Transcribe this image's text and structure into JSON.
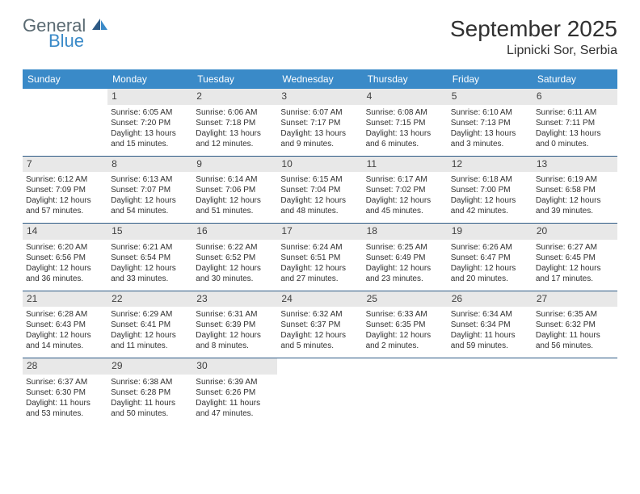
{
  "logo": {
    "part1": "General",
    "part2": "Blue"
  },
  "title": "September 2025",
  "location": "Lipnicki Sor, Serbia",
  "colors": {
    "header_bg": "#3a8ac8",
    "header_text": "#ffffff",
    "daynum_bg": "#e8e8e8",
    "row_border": "#2d5a85",
    "text": "#303030",
    "page_bg": "#ffffff"
  },
  "daysOfWeek": [
    "Sunday",
    "Monday",
    "Tuesday",
    "Wednesday",
    "Thursday",
    "Friday",
    "Saturday"
  ],
  "grid": {
    "columns": 7,
    "rows": 5
  },
  "fonts": {
    "title_pt": 28,
    "location_pt": 16,
    "dow_pt": 12,
    "daynum_pt": 12,
    "body_pt": 10
  },
  "weeks": [
    [
      {
        "n": "",
        "sunrise": "",
        "sunset": "",
        "daylight": ""
      },
      {
        "n": "1",
        "sunrise": "Sunrise: 6:05 AM",
        "sunset": "Sunset: 7:20 PM",
        "daylight": "Daylight: 13 hours and 15 minutes."
      },
      {
        "n": "2",
        "sunrise": "Sunrise: 6:06 AM",
        "sunset": "Sunset: 7:18 PM",
        "daylight": "Daylight: 13 hours and 12 minutes."
      },
      {
        "n": "3",
        "sunrise": "Sunrise: 6:07 AM",
        "sunset": "Sunset: 7:17 PM",
        "daylight": "Daylight: 13 hours and 9 minutes."
      },
      {
        "n": "4",
        "sunrise": "Sunrise: 6:08 AM",
        "sunset": "Sunset: 7:15 PM",
        "daylight": "Daylight: 13 hours and 6 minutes."
      },
      {
        "n": "5",
        "sunrise": "Sunrise: 6:10 AM",
        "sunset": "Sunset: 7:13 PM",
        "daylight": "Daylight: 13 hours and 3 minutes."
      },
      {
        "n": "6",
        "sunrise": "Sunrise: 6:11 AM",
        "sunset": "Sunset: 7:11 PM",
        "daylight": "Daylight: 13 hours and 0 minutes."
      }
    ],
    [
      {
        "n": "7",
        "sunrise": "Sunrise: 6:12 AM",
        "sunset": "Sunset: 7:09 PM",
        "daylight": "Daylight: 12 hours and 57 minutes."
      },
      {
        "n": "8",
        "sunrise": "Sunrise: 6:13 AM",
        "sunset": "Sunset: 7:07 PM",
        "daylight": "Daylight: 12 hours and 54 minutes."
      },
      {
        "n": "9",
        "sunrise": "Sunrise: 6:14 AM",
        "sunset": "Sunset: 7:06 PM",
        "daylight": "Daylight: 12 hours and 51 minutes."
      },
      {
        "n": "10",
        "sunrise": "Sunrise: 6:15 AM",
        "sunset": "Sunset: 7:04 PM",
        "daylight": "Daylight: 12 hours and 48 minutes."
      },
      {
        "n": "11",
        "sunrise": "Sunrise: 6:17 AM",
        "sunset": "Sunset: 7:02 PM",
        "daylight": "Daylight: 12 hours and 45 minutes."
      },
      {
        "n": "12",
        "sunrise": "Sunrise: 6:18 AM",
        "sunset": "Sunset: 7:00 PM",
        "daylight": "Daylight: 12 hours and 42 minutes."
      },
      {
        "n": "13",
        "sunrise": "Sunrise: 6:19 AM",
        "sunset": "Sunset: 6:58 PM",
        "daylight": "Daylight: 12 hours and 39 minutes."
      }
    ],
    [
      {
        "n": "14",
        "sunrise": "Sunrise: 6:20 AM",
        "sunset": "Sunset: 6:56 PM",
        "daylight": "Daylight: 12 hours and 36 minutes."
      },
      {
        "n": "15",
        "sunrise": "Sunrise: 6:21 AM",
        "sunset": "Sunset: 6:54 PM",
        "daylight": "Daylight: 12 hours and 33 minutes."
      },
      {
        "n": "16",
        "sunrise": "Sunrise: 6:22 AM",
        "sunset": "Sunset: 6:52 PM",
        "daylight": "Daylight: 12 hours and 30 minutes."
      },
      {
        "n": "17",
        "sunrise": "Sunrise: 6:24 AM",
        "sunset": "Sunset: 6:51 PM",
        "daylight": "Daylight: 12 hours and 27 minutes."
      },
      {
        "n": "18",
        "sunrise": "Sunrise: 6:25 AM",
        "sunset": "Sunset: 6:49 PM",
        "daylight": "Daylight: 12 hours and 23 minutes."
      },
      {
        "n": "19",
        "sunrise": "Sunrise: 6:26 AM",
        "sunset": "Sunset: 6:47 PM",
        "daylight": "Daylight: 12 hours and 20 minutes."
      },
      {
        "n": "20",
        "sunrise": "Sunrise: 6:27 AM",
        "sunset": "Sunset: 6:45 PM",
        "daylight": "Daylight: 12 hours and 17 minutes."
      }
    ],
    [
      {
        "n": "21",
        "sunrise": "Sunrise: 6:28 AM",
        "sunset": "Sunset: 6:43 PM",
        "daylight": "Daylight: 12 hours and 14 minutes."
      },
      {
        "n": "22",
        "sunrise": "Sunrise: 6:29 AM",
        "sunset": "Sunset: 6:41 PM",
        "daylight": "Daylight: 12 hours and 11 minutes."
      },
      {
        "n": "23",
        "sunrise": "Sunrise: 6:31 AM",
        "sunset": "Sunset: 6:39 PM",
        "daylight": "Daylight: 12 hours and 8 minutes."
      },
      {
        "n": "24",
        "sunrise": "Sunrise: 6:32 AM",
        "sunset": "Sunset: 6:37 PM",
        "daylight": "Daylight: 12 hours and 5 minutes."
      },
      {
        "n": "25",
        "sunrise": "Sunrise: 6:33 AM",
        "sunset": "Sunset: 6:35 PM",
        "daylight": "Daylight: 12 hours and 2 minutes."
      },
      {
        "n": "26",
        "sunrise": "Sunrise: 6:34 AM",
        "sunset": "Sunset: 6:34 PM",
        "daylight": "Daylight: 11 hours and 59 minutes."
      },
      {
        "n": "27",
        "sunrise": "Sunrise: 6:35 AM",
        "sunset": "Sunset: 6:32 PM",
        "daylight": "Daylight: 11 hours and 56 minutes."
      }
    ],
    [
      {
        "n": "28",
        "sunrise": "Sunrise: 6:37 AM",
        "sunset": "Sunset: 6:30 PM",
        "daylight": "Daylight: 11 hours and 53 minutes."
      },
      {
        "n": "29",
        "sunrise": "Sunrise: 6:38 AM",
        "sunset": "Sunset: 6:28 PM",
        "daylight": "Daylight: 11 hours and 50 minutes."
      },
      {
        "n": "30",
        "sunrise": "Sunrise: 6:39 AM",
        "sunset": "Sunset: 6:26 PM",
        "daylight": "Daylight: 11 hours and 47 minutes."
      },
      {
        "n": "",
        "sunrise": "",
        "sunset": "",
        "daylight": ""
      },
      {
        "n": "",
        "sunrise": "",
        "sunset": "",
        "daylight": ""
      },
      {
        "n": "",
        "sunrise": "",
        "sunset": "",
        "daylight": ""
      },
      {
        "n": "",
        "sunrise": "",
        "sunset": "",
        "daylight": ""
      }
    ]
  ]
}
